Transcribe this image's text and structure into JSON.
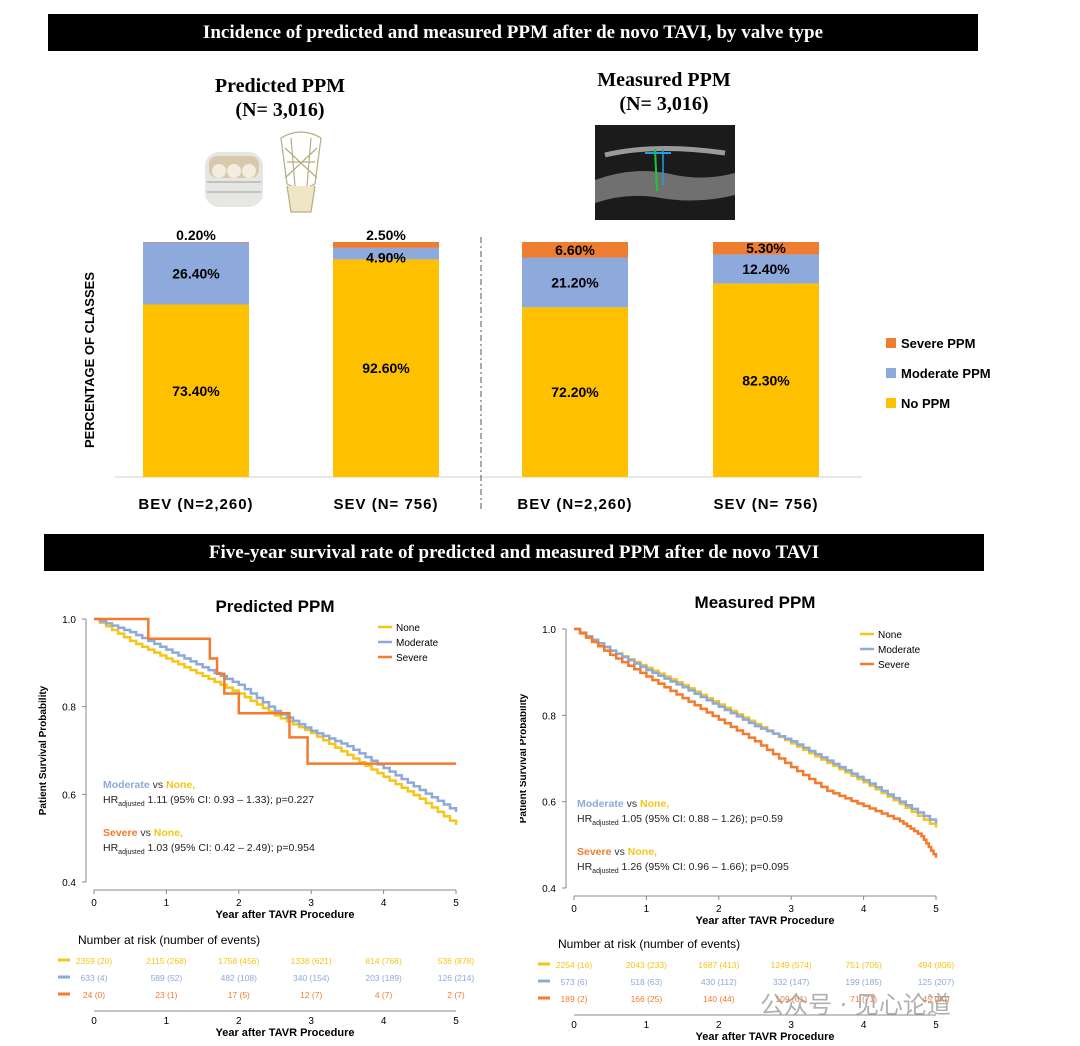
{
  "header1": "Incidence of predicted and measured PPM after de novo TAVI, by valve type",
  "header2": "Five-year survival rate of predicted and measured PPM after de novo TAVI",
  "predicted_title": "Predicted PPM",
  "predicted_n": "(N= 3,016)",
  "measured_title": "Measured PPM",
  "measured_n": "(N= 3,016)",
  "watermark": "公众号 · 见心论道",
  "colors": {
    "none_bar": "#FFC000",
    "moderate_bar": "#8EA9DB",
    "severe_bar": "#ED7D31",
    "none_line": "#F5C518",
    "moderate_line": "#8EA9DB",
    "severe_line": "#F47A2E"
  },
  "chart_data": [
    {
      "type": "bar",
      "stacked": true,
      "ylabel": "PERCENTAGE OF CLASSES",
      "groups": [
        "Predicted PPM",
        "Measured PPM"
      ],
      "categories": [
        "BEV (N=2,260)",
        "SEV (N= 756)",
        "BEV (N=2,260)",
        "SEV (N= 756)"
      ],
      "series": [
        {
          "name": "No PPM",
          "values": [
            73.4,
            92.6,
            72.2,
            82.3
          ],
          "labels": [
            "73.40%",
            "92.60%",
            "72.20%",
            "82.30%"
          ]
        },
        {
          "name": "Moderate PPM",
          "values": [
            26.4,
            4.9,
            21.2,
            12.4
          ],
          "labels": [
            "26.40%",
            "4.90%",
            "21.20%",
            "12.40%"
          ]
        },
        {
          "name": "Severe PPM",
          "values": [
            0.2,
            2.5,
            6.6,
            5.3
          ],
          "labels": [
            "0.20%",
            "2.50%",
            "6.60%",
            "5.30%"
          ]
        }
      ],
      "legend": [
        "Severe PPM",
        "Moderate PPM",
        "No PPM"
      ],
      "ylim": [
        0,
        100
      ]
    },
    {
      "type": "line",
      "title": "Predicted PPM",
      "xlabel": "Year after TAVR Procedure",
      "ylabel": "Patient Survival Probability",
      "xlim": [
        0,
        5
      ],
      "ylim": [
        0.4,
        1.0
      ],
      "xticks": [
        "0",
        "1",
        "2",
        "3",
        "4",
        "5"
      ],
      "yticks": [
        "0.4",
        "0.6",
        "0.8",
        "1.0"
      ],
      "series": [
        {
          "name": "None",
          "x": [
            0,
            0.5,
            1,
            1.5,
            2,
            2.5,
            3,
            3.5,
            4,
            4.5,
            5
          ],
          "y": [
            1.0,
            0.95,
            0.91,
            0.87,
            0.83,
            0.78,
            0.74,
            0.69,
            0.64,
            0.59,
            0.53
          ]
        },
        {
          "name": "Moderate",
          "x": [
            0,
            0.5,
            1,
            1.5,
            2,
            2.5,
            3,
            3.5,
            4,
            4.5,
            5
          ],
          "y": [
            1.0,
            0.97,
            0.93,
            0.89,
            0.85,
            0.79,
            0.745,
            0.71,
            0.66,
            0.61,
            0.56
          ]
        },
        {
          "name": "Severe",
          "x": [
            0,
            0.75,
            0.75,
            1.6,
            1.6,
            1.7,
            1.7,
            1.8,
            1.8,
            2.0,
            2.0,
            2.7,
            2.7,
            2.95,
            2.95,
            5.0
          ],
          "y": [
            1.0,
            1.0,
            0.955,
            0.955,
            0.91,
            0.91,
            0.875,
            0.875,
            0.83,
            0.83,
            0.785,
            0.785,
            0.73,
            0.73,
            0.67,
            0.67
          ]
        }
      ],
      "legend": [
        "None",
        "Moderate",
        "Severe"
      ],
      "annotations": {
        "a1_head": "Moderate",
        "a1_vs": " vs ",
        "a1_ref": "None,",
        "a1_hr": "HR",
        "a1_sub": "adjusted",
        "a1_stat": " 1.11 (95% CI: 0.93 – 1.33); p=0.227",
        "a2_head": "Severe",
        "a2_vs": " vs ",
        "a2_ref": "None,",
        "a2_hr": "HR",
        "a2_sub": "adjusted",
        "a2_stat": " 1.03 (95% CI: 0.42 – 2.49); p=0.954"
      },
      "risk_table": {
        "title": "Number at risk (number of events)",
        "xlabel": "Year after TAVR Procedure",
        "xticks": [
          "0",
          "1",
          "2",
          "3",
          "4",
          "5"
        ],
        "rows": [
          {
            "name": "None",
            "values": [
              "2359 (20)",
              "2115 (268)",
              "1758 (456)",
              "1338 (621)",
              "814 (768)",
              "536 (878)"
            ]
          },
          {
            "name": "Moderate",
            "values": [
              "633 (4)",
              "589 (52)",
              "482 (108)",
              "340 (154)",
              "203 (189)",
              "126 (214)"
            ]
          },
          {
            "name": "Severe",
            "values": [
              "24 (0)",
              "23 (1)",
              "17 (5)",
              "12 (7)",
              "4 (7)",
              "2 (7)"
            ]
          }
        ]
      }
    },
    {
      "type": "line",
      "title": "Measured PPM",
      "xlabel": "Year after TAVR Procedure",
      "ylabel": "Patient Survival Probability",
      "xlim": [
        0,
        5
      ],
      "ylim": [
        0.4,
        1.0
      ],
      "xticks": [
        "0",
        "1",
        "2",
        "3",
        "4",
        "5"
      ],
      "yticks": [
        "0.4",
        "0.6",
        "0.8",
        "1.0"
      ],
      "series": [
        {
          "name": "None",
          "x": [
            0,
            0.5,
            1,
            1.5,
            2,
            2.5,
            3,
            3.5,
            4,
            4.5,
            5
          ],
          "y": [
            1.0,
            0.95,
            0.91,
            0.87,
            0.825,
            0.78,
            0.735,
            0.69,
            0.645,
            0.595,
            0.54
          ]
        },
        {
          "name": "Moderate",
          "x": [
            0,
            0.5,
            1,
            1.5,
            2,
            2.5,
            3,
            3.5,
            4,
            4.5,
            5
          ],
          "y": [
            1.0,
            0.95,
            0.905,
            0.865,
            0.82,
            0.775,
            0.74,
            0.695,
            0.65,
            0.6,
            0.55
          ]
        },
        {
          "name": "Severe",
          "x": [
            0,
            0.5,
            1,
            1.5,
            2,
            2.5,
            3,
            3.5,
            4,
            4.5,
            4.8,
            5
          ],
          "y": [
            1.0,
            0.94,
            0.89,
            0.84,
            0.79,
            0.74,
            0.68,
            0.625,
            0.59,
            0.555,
            0.52,
            0.47
          ]
        }
      ],
      "legend": [
        "None",
        "Moderate",
        "Severe"
      ],
      "annotations": {
        "a1_head": "Moderate",
        "a1_vs": " vs ",
        "a1_ref": "None,",
        "a1_hr": "HR",
        "a1_sub": "adjusted",
        "a1_stat": " 1.05 (95% CI: 0.88 – 1.26); p=0.59",
        "a2_head": "Severe",
        "a2_vs": " vs ",
        "a2_ref": "None,",
        "a2_hr": "HR",
        "a2_sub": "adjusted",
        "a2_stat": " 1.26 (95% CI: 0.96 – 1.66); p=0.095"
      },
      "risk_table": {
        "title": "Number at risk (number of events)",
        "xlabel": "Year after TAVR Procedure",
        "xticks": [
          "0",
          "1",
          "2",
          "3",
          "4",
          "5"
        ],
        "rows": [
          {
            "name": "None",
            "values": [
              "2254 (16)",
              "2043 (233)",
              "1687 (413)",
              "1249 (574)",
              "751 (706)",
              "494 (806)"
            ]
          },
          {
            "name": "Moderate",
            "values": [
              "573 (6)",
              "518 (63)",
              "430 (112)",
              "332 (147)",
              "199 (185)",
              "125 (207)"
            ]
          },
          {
            "name": "Severe",
            "values": [
              "189 (2)",
              "166 (25)",
              "140 (44)",
              "109 (61)",
              "71 (71)",
              "45 (80)"
            ]
          }
        ]
      }
    }
  ]
}
